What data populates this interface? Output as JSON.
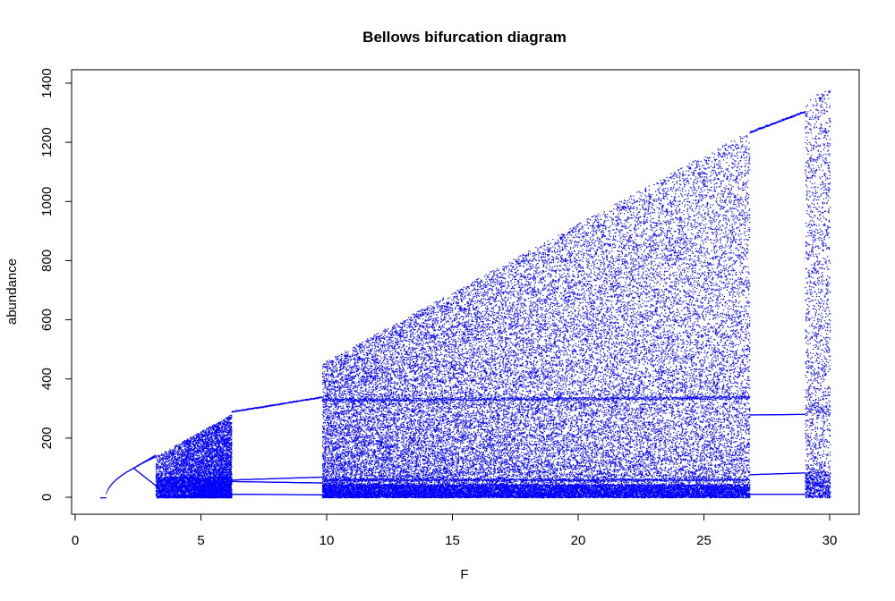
{
  "chart_data": {
    "type": "scatter",
    "title": "Bellows bifurcation diagram",
    "xlabel": "F",
    "ylabel": "abundance",
    "xlim": [
      0,
      30
    ],
    "ylim": [
      0,
      1400
    ],
    "x_ticks": [
      0,
      5,
      10,
      15,
      20,
      25,
      30
    ],
    "y_ticks": [
      0,
      200,
      400,
      600,
      800,
      1000,
      1200,
      1400
    ],
    "x_tick_labels": [
      "0",
      "5",
      "10",
      "15",
      "20",
      "25",
      "30"
    ],
    "y_tick_labels": [
      "0",
      "200",
      "400",
      "600",
      "800",
      "1000",
      "1200",
      "1400"
    ],
    "point_color": "#0000ff",
    "grid": false,
    "legend": "none",
    "series": [
      {
        "values": [
          {
            "F_range": [
              1.0,
              1.2
            ],
            "abundance": [
              0,
              0
            ]
          },
          {
            "F_range": [
              1.2,
              2.3
            ],
            "abundance": [
              0,
              100
            ]
          },
          {
            "F_range": [
              2.3,
              3.2
            ],
            "abundance": [
              100,
              40,
              140
            ]
          },
          {
            "F_range": [
              3.2,
              6.2
            ],
            "abundance": [
              0,
              280
            ]
          },
          {
            "F_range": [
              6.2,
              9.8
            ],
            "abundance": [
              15,
              60,
              340
            ]
          },
          {
            "F_range": [
              9.8,
              26.8
            ],
            "abundance": [
              0,
              1240
            ]
          },
          {
            "F_range": [
              26.8,
              29.0
            ],
            "abundance": [
              15,
              80,
              280,
              1300
            ]
          },
          {
            "F_range": [
              29.0,
              30.0
            ],
            "abundance": [
              0,
              1390
            ]
          }
        ]
      }
    ]
  }
}
